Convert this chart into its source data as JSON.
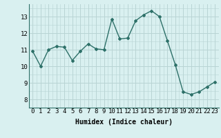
{
  "x": [
    0,
    1,
    2,
    3,
    4,
    5,
    6,
    7,
    8,
    9,
    10,
    11,
    12,
    13,
    14,
    15,
    16,
    17,
    18,
    19,
    20,
    21,
    22,
    23
  ],
  "y": [
    10.9,
    10.0,
    11.0,
    11.2,
    11.15,
    10.35,
    10.9,
    11.35,
    11.05,
    11.0,
    12.85,
    11.65,
    11.7,
    12.75,
    13.1,
    13.35,
    13.0,
    11.55,
    10.1,
    8.45,
    8.3,
    8.45,
    8.75,
    9.05
  ],
  "line_color": "#2d7068",
  "marker": "D",
  "marker_size": 2.0,
  "bg_color": "#d9f0f0",
  "grid_major_color": "#b8d4d4",
  "grid_minor_color": "#cce4e4",
  "xlabel": "Humidex (Indice chaleur)",
  "ylim": [
    7.5,
    13.75
  ],
  "xlim": [
    -0.5,
    23.5
  ],
  "yticks": [
    8,
    9,
    10,
    11,
    12,
    13
  ],
  "xticks": [
    0,
    1,
    2,
    3,
    4,
    5,
    6,
    7,
    8,
    9,
    10,
    11,
    12,
    13,
    14,
    15,
    16,
    17,
    18,
    19,
    20,
    21,
    22,
    23
  ],
  "xlabel_fontsize": 7,
  "tick_fontsize": 6.5,
  "line_width": 1.0
}
